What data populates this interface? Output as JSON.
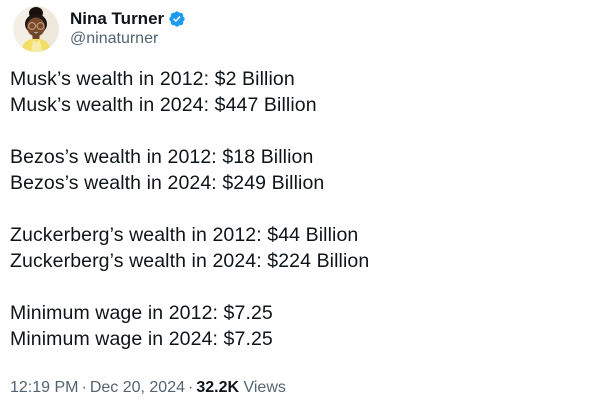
{
  "tweet": {
    "author": {
      "name": "Nina Turner",
      "handle": "@ninaturner",
      "verified": true,
      "verified_icon": "verified-badge",
      "avatar_description": "woman with glasses, hair in bun, yellow top"
    },
    "body": {
      "paragraphs": [
        [
          "Musk’s wealth in 2012: $2 Billion",
          "Musk’s wealth in 2024: $447 Billion"
        ],
        [
          "Bezos’s wealth in 2012: $18 Billion",
          "Bezos’s wealth in 2024: $249 Billion"
        ],
        [
          "Zuckerberg’s wealth in 2012: $44 Billion",
          "Zuckerberg’s wealth in 2024: $224 Billion"
        ],
        [
          "Minimum wage in 2012: $7.25",
          "Minimum wage in 2024: $7.25"
        ]
      ]
    },
    "footer": {
      "time": "12:19 PM",
      "date": "Dec 20, 2024",
      "separator": "·",
      "views_count": "32.2K",
      "views_label": "Views"
    },
    "colors": {
      "verified_blue": "#1d9bf0",
      "text_primary": "#0f1419",
      "text_secondary": "#536471",
      "background": "#ffffff"
    }
  }
}
